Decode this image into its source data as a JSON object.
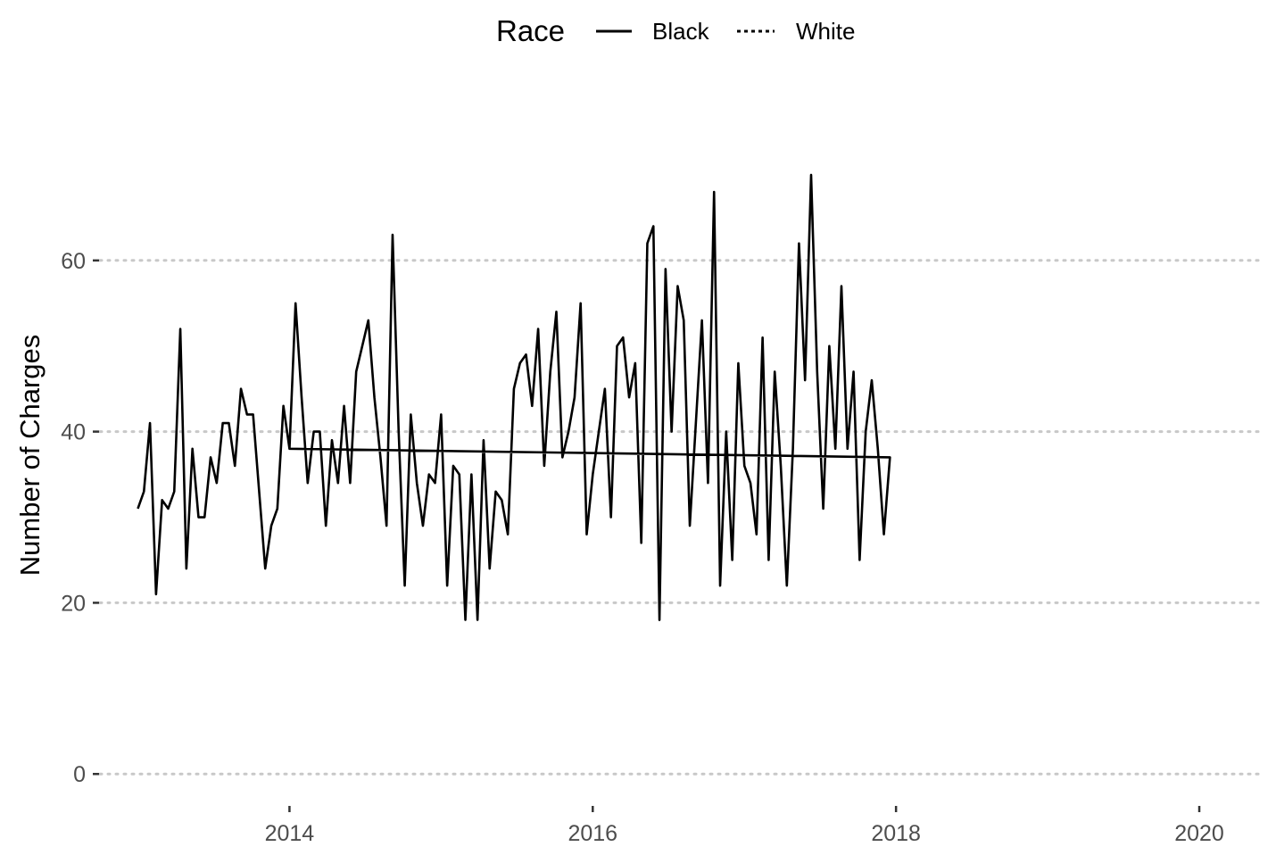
{
  "chart_data": {
    "type": "line",
    "title": "",
    "xlabel": "",
    "ylabel": "Number of Charges",
    "xlim": [
      2012.75,
      2020.4
    ],
    "ylim": [
      -3,
      80
    ],
    "x_ticks": [
      2014,
      2016,
      2018,
      2020
    ],
    "x_tick_labels": [
      "2014",
      "2016",
      "2018",
      "2020"
    ],
    "y_ticks": [
      0,
      20,
      40,
      60
    ],
    "y_tick_labels": [
      "0",
      "20",
      "40",
      "60"
    ],
    "grid": "horizontal-dotted",
    "legend": {
      "title": "Race",
      "position": "top",
      "entries": [
        {
          "label": "Black",
          "style": "solid"
        },
        {
          "label": "White",
          "style": "dotted"
        }
      ]
    },
    "series": [
      {
        "name": "Black",
        "style": "solid",
        "color": "#000000",
        "points": [
          [
            2013.0,
            31
          ],
          [
            2013.04,
            33
          ],
          [
            2013.08,
            41
          ],
          [
            2013.12,
            21
          ],
          [
            2013.16,
            32
          ],
          [
            2013.2,
            31
          ],
          [
            2013.24,
            33
          ],
          [
            2013.28,
            52
          ],
          [
            2013.32,
            24
          ],
          [
            2013.36,
            38
          ],
          [
            2013.4,
            30
          ],
          [
            2013.44,
            30
          ],
          [
            2013.48,
            37
          ],
          [
            2013.52,
            34
          ],
          [
            2013.56,
            41
          ],
          [
            2013.6,
            41
          ],
          [
            2013.64,
            36
          ],
          [
            2013.68,
            45
          ],
          [
            2013.72,
            42
          ],
          [
            2013.76,
            42
          ],
          [
            2013.8,
            33
          ],
          [
            2013.84,
            24
          ],
          [
            2013.88,
            29
          ],
          [
            2013.92,
            31
          ],
          [
            2013.96,
            43
          ],
          [
            2014.0,
            38
          ],
          [
            2014.04,
            55
          ],
          [
            2014.08,
            44
          ],
          [
            2014.12,
            34
          ],
          [
            2014.16,
            40
          ],
          [
            2014.2,
            40
          ],
          [
            2014.24,
            29
          ],
          [
            2014.28,
            39
          ],
          [
            2014.32,
            34
          ],
          [
            2014.36,
            43
          ],
          [
            2014.4,
            34
          ],
          [
            2014.44,
            47
          ],
          [
            2014.48,
            50
          ],
          [
            2014.52,
            53
          ],
          [
            2014.56,
            44
          ],
          [
            2014.6,
            37
          ],
          [
            2014.64,
            29
          ],
          [
            2014.68,
            63
          ],
          [
            2014.72,
            40
          ],
          [
            2014.76,
            22
          ],
          [
            2014.8,
            42
          ],
          [
            2014.84,
            34
          ],
          [
            2014.88,
            29
          ],
          [
            2014.92,
            35
          ],
          [
            2014.96,
            34
          ],
          [
            2015.0,
            42
          ],
          [
            2015.04,
            22
          ],
          [
            2015.08,
            36
          ],
          [
            2015.12,
            35
          ],
          [
            2015.16,
            18
          ],
          [
            2015.2,
            35
          ],
          [
            2015.24,
            18
          ],
          [
            2015.28,
            39
          ],
          [
            2015.32,
            24
          ],
          [
            2015.36,
            33
          ],
          [
            2015.4,
            32
          ],
          [
            2015.44,
            28
          ],
          [
            2015.48,
            45
          ],
          [
            2015.52,
            48
          ],
          [
            2015.56,
            49
          ],
          [
            2015.6,
            43
          ],
          [
            2015.64,
            52
          ],
          [
            2015.68,
            36
          ],
          [
            2015.72,
            47
          ],
          [
            2015.76,
            54
          ],
          [
            2015.8,
            37
          ],
          [
            2015.84,
            40
          ],
          [
            2015.88,
            44
          ],
          [
            2015.92,
            55
          ],
          [
            2015.96,
            28
          ],
          [
            2016.0,
            35
          ],
          [
            2016.04,
            40
          ],
          [
            2016.08,
            45
          ],
          [
            2016.12,
            30
          ],
          [
            2016.16,
            50
          ],
          [
            2016.2,
            51
          ],
          [
            2016.24,
            44
          ],
          [
            2016.28,
            48
          ],
          [
            2016.32,
            27
          ],
          [
            2016.36,
            62
          ],
          [
            2016.4,
            64
          ],
          [
            2016.44,
            18
          ],
          [
            2016.48,
            59
          ],
          [
            2016.52,
            40
          ],
          [
            2016.56,
            57
          ],
          [
            2016.6,
            53
          ],
          [
            2016.64,
            29
          ],
          [
            2016.68,
            41
          ],
          [
            2016.72,
            53
          ],
          [
            2016.76,
            34
          ],
          [
            2016.8,
            68
          ],
          [
            2016.84,
            22
          ],
          [
            2016.88,
            40
          ],
          [
            2016.92,
            25
          ],
          [
            2016.96,
            48
          ],
          [
            2017.0,
            36
          ],
          [
            2017.04,
            34
          ],
          [
            2017.08,
            28
          ],
          [
            2017.12,
            51
          ],
          [
            2017.16,
            25
          ],
          [
            2017.2,
            47
          ],
          [
            2017.24,
            36
          ],
          [
            2017.28,
            22
          ],
          [
            2017.32,
            38
          ],
          [
            2017.36,
            62
          ],
          [
            2017.4,
            46
          ],
          [
            2017.44,
            70
          ],
          [
            2017.48,
            47
          ],
          [
            2017.52,
            31
          ],
          [
            2017.56,
            50
          ],
          [
            2017.6,
            38
          ],
          [
            2017.64,
            57
          ],
          [
            2017.68,
            38
          ],
          [
            2017.72,
            47
          ],
          [
            2017.76,
            25
          ],
          [
            2017.8,
            40
          ],
          [
            2017.84,
            46
          ],
          [
            2017.88,
            38
          ],
          [
            2017.92,
            28
          ],
          [
            2017.96,
            37
          ],
          [
            2014.0,
            38
          ]
        ]
      },
      {
        "name": "White",
        "style": "dotted",
        "color": "#000000",
        "points": []
      }
    ]
  }
}
